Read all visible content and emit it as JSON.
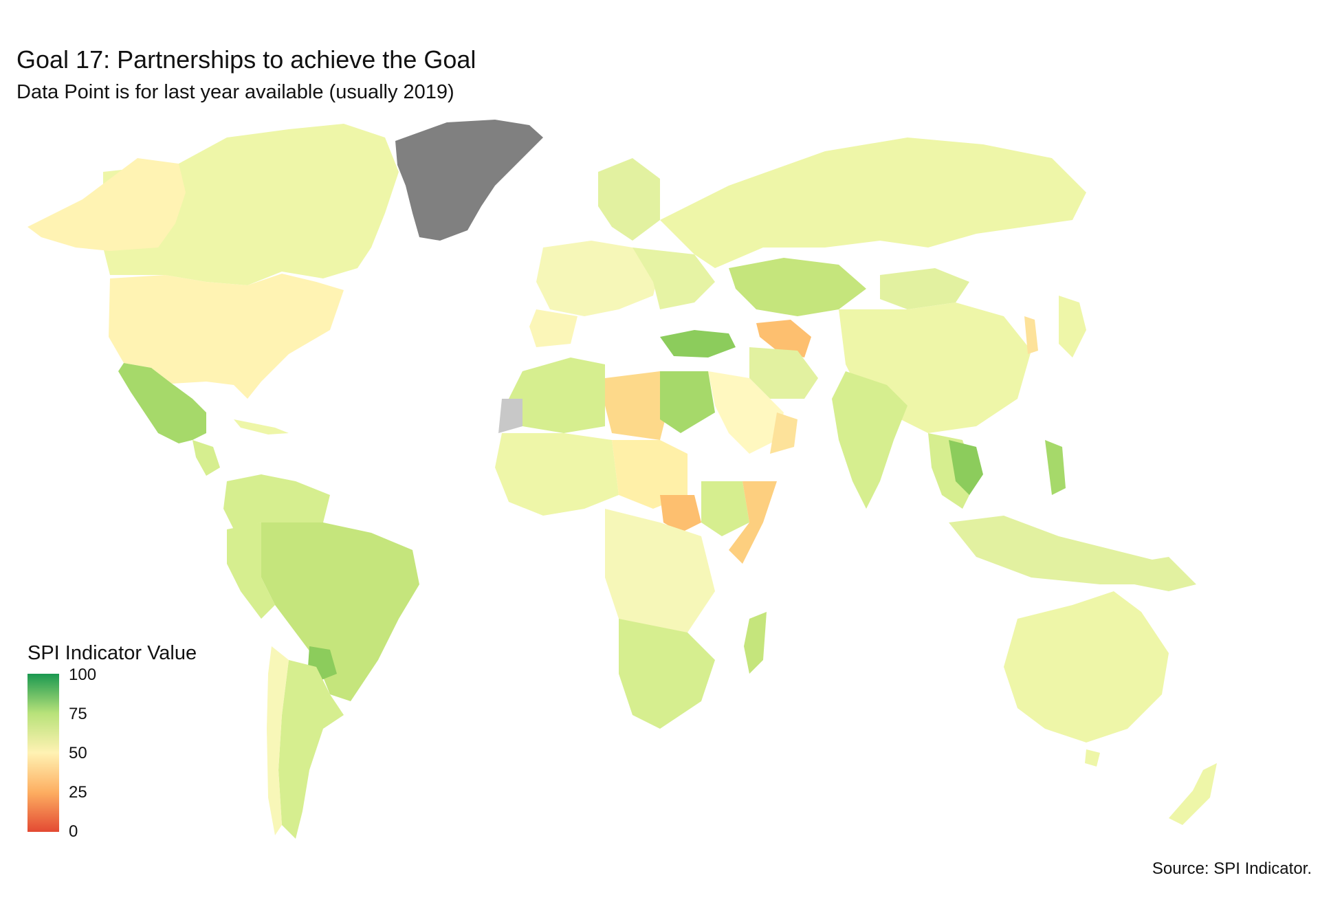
{
  "header": {
    "title": "Goal 17: Partnerships to achieve the Goal",
    "subtitle": "Data Point is for last year available (usually 2019)"
  },
  "legend": {
    "title": "SPI Indicator Value",
    "ticks": [
      "100",
      "75",
      "50",
      "25",
      "0"
    ]
  },
  "caption": "Source: SPI Indicator.",
  "colors": {
    "high": "#1a9850",
    "mid_high": "#b8e27a",
    "mid": "#fff2b3",
    "mid_low": "#fdae61",
    "low": "#e34a33",
    "no_data": "#c8c8c8",
    "greenland": "#808080"
  },
  "chart_data": {
    "type": "heatmap",
    "scale": {
      "min": 0,
      "max": 100
    },
    "regions": [
      {
        "name": "Canada",
        "value": 62
      },
      {
        "name": "United States",
        "value": 52
      },
      {
        "name": "Alaska",
        "value": 52
      },
      {
        "name": "Mexico",
        "value": 76
      },
      {
        "name": "Brazil",
        "value": 70
      },
      {
        "name": "Argentina",
        "value": 65
      },
      {
        "name": "Paraguay",
        "value": 80
      },
      {
        "name": "Russia",
        "value": 60
      },
      {
        "name": "Kazakhstan",
        "value": 70
      },
      {
        "name": "Turkey",
        "value": 80
      },
      {
        "name": "Turkmenistan",
        "value": 30
      },
      {
        "name": "China",
        "value": 60
      },
      {
        "name": "India",
        "value": 65
      },
      {
        "name": "Libya",
        "value": 38
      },
      {
        "name": "Egypt",
        "value": 74
      },
      {
        "name": "Saudi Arabia",
        "value": 52
      },
      {
        "name": "South Sudan",
        "value": 28
      },
      {
        "name": "Somalia",
        "value": 35
      },
      {
        "name": "Thailand",
        "value": 78
      },
      {
        "name": "Australia",
        "value": 60
      },
      {
        "name": "Greenland",
        "value": null
      }
    ]
  }
}
